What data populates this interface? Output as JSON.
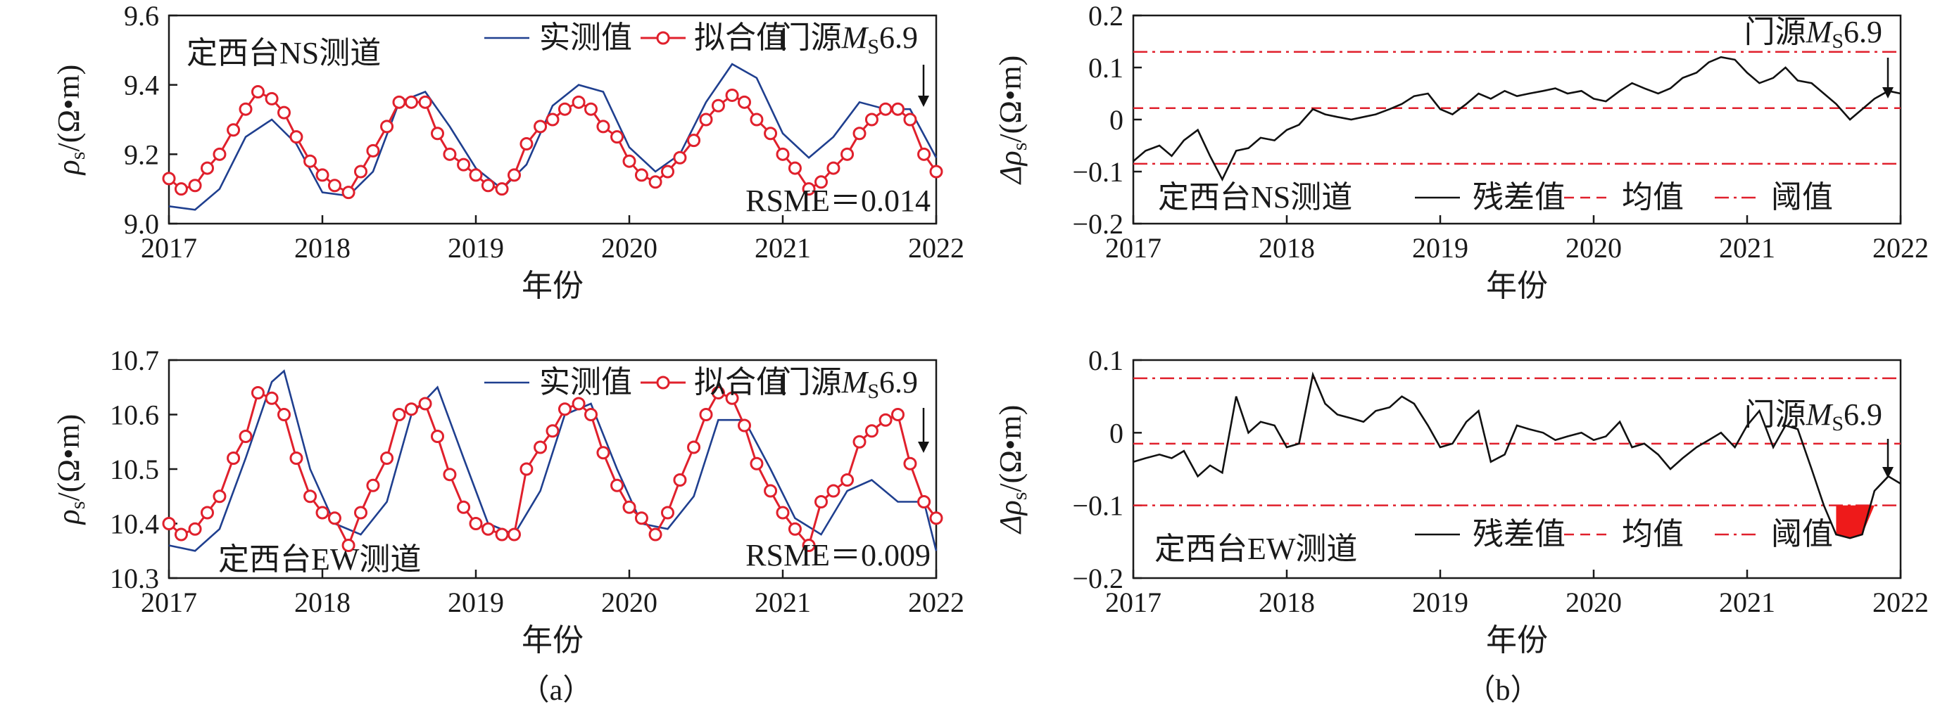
{
  "figure": {
    "caption_a": "（a）",
    "caption_b": "（b）",
    "xlabel": "年份",
    "xticks": [
      "2017",
      "2018",
      "2019",
      "2020",
      "2021",
      "2022"
    ],
    "ylabel_rho": "ρs/(Ω•m)",
    "ylabel_delta": "Δρs/(Ω•m)",
    "earthquake_label": "门源MS6.9",
    "colors": {
      "measured": "#1f3f8f",
      "fitted": "#e0202c",
      "residual": "#111111",
      "mean": "#e0202c",
      "threshold": "#e0202c",
      "anomaly_fill": "#ee1a1a"
    }
  },
  "chart_data": [
    {
      "id": "a1",
      "type": "line",
      "title": "定西台NS测道",
      "xlabel": "年份",
      "ylabel": "ρs/(Ω•m)",
      "xlim": [
        2017,
        2022
      ],
      "ylim": [
        9.0,
        9.6
      ],
      "yticks": [
        "9.0",
        "9.2",
        "9.4",
        "9.6"
      ],
      "ytick_values": [
        9.0,
        9.2,
        9.4,
        9.6
      ],
      "rsme_label": "RSME＝0.014",
      "legend": [
        "实测值",
        "拟合值"
      ],
      "earthquake_x": 2022.0,
      "series": [
        {
          "name": "实测值",
          "style": "line",
          "x": [
            2017.0,
            2017.17,
            2017.33,
            2017.5,
            2017.67,
            2017.83,
            2018.0,
            2018.17,
            2018.33,
            2018.5,
            2018.67,
            2018.83,
            2019.0,
            2019.17,
            2019.33,
            2019.5,
            2019.67,
            2019.83,
            2020.0,
            2020.17,
            2020.33,
            2020.5,
            2020.67,
            2020.83,
            2021.0,
            2021.17,
            2021.33,
            2021.5,
            2021.67,
            2021.83,
            2022.0
          ],
          "y": [
            9.05,
            9.04,
            9.1,
            9.25,
            9.3,
            9.23,
            9.09,
            9.08,
            9.15,
            9.35,
            9.38,
            9.28,
            9.16,
            9.1,
            9.17,
            9.34,
            9.4,
            9.38,
            9.22,
            9.15,
            9.2,
            9.35,
            9.46,
            9.42,
            9.26,
            9.19,
            9.25,
            9.35,
            9.33,
            9.33,
            9.19
          ]
        },
        {
          "name": "拟合值",
          "style": "line-marker",
          "x": [
            2017.0,
            2017.08,
            2017.17,
            2017.25,
            2017.33,
            2017.42,
            2017.5,
            2017.58,
            2017.67,
            2017.75,
            2017.83,
            2017.92,
            2018.0,
            2018.08,
            2018.17,
            2018.25,
            2018.33,
            2018.42,
            2018.5,
            2018.58,
            2018.67,
            2018.75,
            2018.83,
            2018.92,
            2019.0,
            2019.08,
            2019.17,
            2019.25,
            2019.33,
            2019.42,
            2019.5,
            2019.58,
            2019.67,
            2019.75,
            2019.83,
            2019.92,
            2020.0,
            2020.08,
            2020.17,
            2020.25,
            2020.33,
            2020.42,
            2020.5,
            2020.58,
            2020.67,
            2020.75,
            2020.83,
            2020.92,
            2021.0,
            2021.08,
            2021.17,
            2021.25,
            2021.33,
            2021.42,
            2021.5,
            2021.58,
            2021.67,
            2021.75,
            2021.83,
            2021.92,
            2022.0
          ],
          "y": [
            9.13,
            9.1,
            9.11,
            9.16,
            9.2,
            9.27,
            9.33,
            9.38,
            9.36,
            9.32,
            9.25,
            9.18,
            9.14,
            9.11,
            9.09,
            9.15,
            9.21,
            9.28,
            9.35,
            9.35,
            9.35,
            9.26,
            9.2,
            9.17,
            9.14,
            9.11,
            9.1,
            9.14,
            9.23,
            9.28,
            9.3,
            9.33,
            9.35,
            9.33,
            9.28,
            9.25,
            9.18,
            9.14,
            9.12,
            9.15,
            9.19,
            9.24,
            9.3,
            9.34,
            9.37,
            9.35,
            9.3,
            9.26,
            9.2,
            9.16,
            9.1,
            9.12,
            9.16,
            9.2,
            9.26,
            9.3,
            9.33,
            9.33,
            9.3,
            9.2,
            9.15
          ]
        }
      ]
    },
    {
      "id": "a2",
      "type": "line",
      "title": "定西台EW测道",
      "xlabel": "年份",
      "ylabel": "ρs/(Ω•m)",
      "xlim": [
        2017,
        2022
      ],
      "ylim": [
        10.3,
        10.7
      ],
      "yticks": [
        "10.3",
        "10.4",
        "10.5",
        "10.6",
        "10.7"
      ],
      "ytick_values": [
        10.3,
        10.4,
        10.5,
        10.6,
        10.7
      ],
      "rsme_label": "RSME＝0.009",
      "legend": [
        "实测值",
        "拟合值"
      ],
      "earthquake_x": 2022.0,
      "series": [
        {
          "name": "实测值",
          "style": "line",
          "x": [
            2017.0,
            2017.17,
            2017.33,
            2017.5,
            2017.67,
            2017.75,
            2017.92,
            2018.08,
            2018.25,
            2018.42,
            2018.58,
            2018.75,
            2018.92,
            2019.08,
            2019.25,
            2019.42,
            2019.58,
            2019.75,
            2019.92,
            2020.08,
            2020.25,
            2020.42,
            2020.58,
            2020.75,
            2020.92,
            2021.08,
            2021.25,
            2021.42,
            2021.58,
            2021.75,
            2021.92,
            2022.0
          ],
          "y": [
            10.36,
            10.35,
            10.39,
            10.52,
            10.66,
            10.68,
            10.5,
            10.4,
            10.38,
            10.44,
            10.6,
            10.65,
            10.52,
            10.4,
            10.38,
            10.46,
            10.6,
            10.62,
            10.5,
            10.4,
            10.39,
            10.45,
            10.59,
            10.59,
            10.5,
            10.41,
            10.38,
            10.46,
            10.48,
            10.44,
            10.44,
            10.35
          ]
        },
        {
          "name": "拟合值",
          "style": "line-marker",
          "x": [
            2017.0,
            2017.08,
            2017.17,
            2017.25,
            2017.33,
            2017.42,
            2017.5,
            2017.58,
            2017.67,
            2017.75,
            2017.83,
            2017.92,
            2018.0,
            2018.08,
            2018.17,
            2018.25,
            2018.33,
            2018.42,
            2018.5,
            2018.58,
            2018.67,
            2018.75,
            2018.83,
            2018.92,
            2019.0,
            2019.08,
            2019.17,
            2019.25,
            2019.33,
            2019.42,
            2019.5,
            2019.58,
            2019.67,
            2019.75,
            2019.83,
            2019.92,
            2020.0,
            2020.08,
            2020.17,
            2020.25,
            2020.33,
            2020.42,
            2020.5,
            2020.58,
            2020.67,
            2020.75,
            2020.83,
            2020.92,
            2021.0,
            2021.08,
            2021.17,
            2021.25,
            2021.33,
            2021.42,
            2021.5,
            2021.58,
            2021.67,
            2021.75,
            2021.83,
            2021.92,
            2022.0
          ],
          "y": [
            10.4,
            10.38,
            10.39,
            10.42,
            10.45,
            10.52,
            10.56,
            10.64,
            10.63,
            10.6,
            10.52,
            10.45,
            10.42,
            10.41,
            10.36,
            10.42,
            10.47,
            10.52,
            10.6,
            10.61,
            10.62,
            10.56,
            10.49,
            10.43,
            10.4,
            10.39,
            10.38,
            10.38,
            10.5,
            10.54,
            10.57,
            10.61,
            10.62,
            10.6,
            10.53,
            10.47,
            10.43,
            10.41,
            10.38,
            10.42,
            10.48,
            10.54,
            10.6,
            10.64,
            10.63,
            10.58,
            10.51,
            10.46,
            10.42,
            10.39,
            10.36,
            10.44,
            10.46,
            10.48,
            10.55,
            10.57,
            10.59,
            10.6,
            10.51,
            10.44,
            10.41
          ]
        }
      ]
    },
    {
      "id": "b1",
      "type": "line",
      "title": "定西台NS测道",
      "xlabel": "年份",
      "ylabel": "Δρs/(Ω•m)",
      "xlim": [
        2017,
        2022
      ],
      "ylim": [
        -0.2,
        0.2
      ],
      "yticks": [
        "−0.2",
        "−0.1",
        "0",
        "0.1",
        "0.2"
      ],
      "ytick_values": [
        -0.2,
        -0.1,
        0,
        0.1,
        0.2
      ],
      "legend": [
        "残差值",
        "均值",
        "阈值"
      ],
      "mean": 0.022,
      "thresholds": [
        0.13,
        -0.085
      ],
      "earthquake_x": 2022.0,
      "series": [
        {
          "name": "残差值",
          "style": "line",
          "x": [
            2017.0,
            2017.08,
            2017.17,
            2017.25,
            2017.33,
            2017.42,
            2017.5,
            2017.58,
            2017.67,
            2017.75,
            2017.83,
            2017.92,
            2018.0,
            2018.08,
            2018.17,
            2018.25,
            2018.33,
            2018.42,
            2018.5,
            2018.58,
            2018.67,
            2018.75,
            2018.83,
            2018.92,
            2019.0,
            2019.08,
            2019.17,
            2019.25,
            2019.33,
            2019.42,
            2019.5,
            2019.58,
            2019.67,
            2019.75,
            2019.83,
            2019.92,
            2020.0,
            2020.08,
            2020.17,
            2020.25,
            2020.33,
            2020.42,
            2020.5,
            2020.58,
            2020.67,
            2020.75,
            2020.83,
            2020.92,
            2021.0,
            2021.08,
            2021.17,
            2021.25,
            2021.33,
            2021.42,
            2021.5,
            2021.58,
            2021.67,
            2021.75,
            2021.83,
            2021.92,
            2022.0
          ],
          "y": [
            -0.08,
            -0.06,
            -0.05,
            -0.07,
            -0.04,
            -0.02,
            -0.07,
            -0.115,
            -0.06,
            -0.055,
            -0.035,
            -0.04,
            -0.02,
            -0.01,
            0.02,
            0.01,
            0.005,
            0.0,
            0.005,
            0.01,
            0.02,
            0.03,
            0.045,
            0.05,
            0.02,
            0.01,
            0.03,
            0.05,
            0.04,
            0.055,
            0.045,
            0.05,
            0.055,
            0.06,
            0.05,
            0.055,
            0.04,
            0.035,
            0.055,
            0.07,
            0.06,
            0.05,
            0.06,
            0.08,
            0.09,
            0.11,
            0.12,
            0.115,
            0.09,
            0.07,
            0.08,
            0.1,
            0.075,
            0.07,
            0.05,
            0.03,
            0.0,
            0.02,
            0.04,
            0.055,
            0.05
          ]
        }
      ]
    },
    {
      "id": "b2",
      "type": "line",
      "title": "定西台EW测道",
      "xlabel": "年份",
      "ylabel": "Δρs/(Ω•m)",
      "xlim": [
        2017,
        2022
      ],
      "ylim": [
        -0.2,
        0.1
      ],
      "yticks": [
        "−0.2",
        "−0.1",
        "0",
        "0.1"
      ],
      "ytick_values": [
        -0.2,
        -0.1,
        0,
        0.1
      ],
      "legend": [
        "残差值",
        "均值",
        "阈值"
      ],
      "mean": -0.015,
      "thresholds": [
        0.075,
        -0.1
      ],
      "earthquake_x": 2022.0,
      "anomaly": {
        "from": 2021.58,
        "to": 2021.83
      },
      "series": [
        {
          "name": "残差值",
          "style": "line",
          "x": [
            2017.0,
            2017.08,
            2017.17,
            2017.25,
            2017.33,
            2017.42,
            2017.5,
            2017.58,
            2017.67,
            2017.75,
            2017.83,
            2017.92,
            2018.0,
            2018.08,
            2018.17,
            2018.25,
            2018.33,
            2018.42,
            2018.5,
            2018.58,
            2018.67,
            2018.75,
            2018.83,
            2018.92,
            2019.0,
            2019.08,
            2019.17,
            2019.25,
            2019.33,
            2019.42,
            2019.5,
            2019.58,
            2019.67,
            2019.75,
            2019.83,
            2019.92,
            2020.0,
            2020.08,
            2020.17,
            2020.25,
            2020.33,
            2020.42,
            2020.5,
            2020.58,
            2020.67,
            2020.75,
            2020.83,
            2020.92,
            2021.0,
            2021.08,
            2021.17,
            2021.25,
            2021.33,
            2021.42,
            2021.5,
            2021.58,
            2021.67,
            2021.75,
            2021.83,
            2021.92,
            2022.0
          ],
          "y": [
            -0.04,
            -0.035,
            -0.03,
            -0.035,
            -0.025,
            -0.06,
            -0.045,
            -0.055,
            0.05,
            0.0,
            0.015,
            0.01,
            -0.02,
            -0.015,
            0.08,
            0.04,
            0.025,
            0.02,
            0.015,
            0.03,
            0.035,
            0.05,
            0.04,
            0.01,
            -0.02,
            -0.015,
            0.015,
            0.03,
            -0.04,
            -0.03,
            0.01,
            0.005,
            0.0,
            -0.01,
            -0.005,
            0.0,
            -0.01,
            -0.005,
            0.015,
            -0.02,
            -0.015,
            -0.03,
            -0.05,
            -0.035,
            -0.02,
            -0.01,
            0.0,
            -0.02,
            0.01,
            0.03,
            -0.02,
            0.01,
            0.005,
            -0.05,
            -0.1,
            -0.14,
            -0.145,
            -0.14,
            -0.08,
            -0.06,
            -0.07
          ]
        }
      ]
    }
  ]
}
